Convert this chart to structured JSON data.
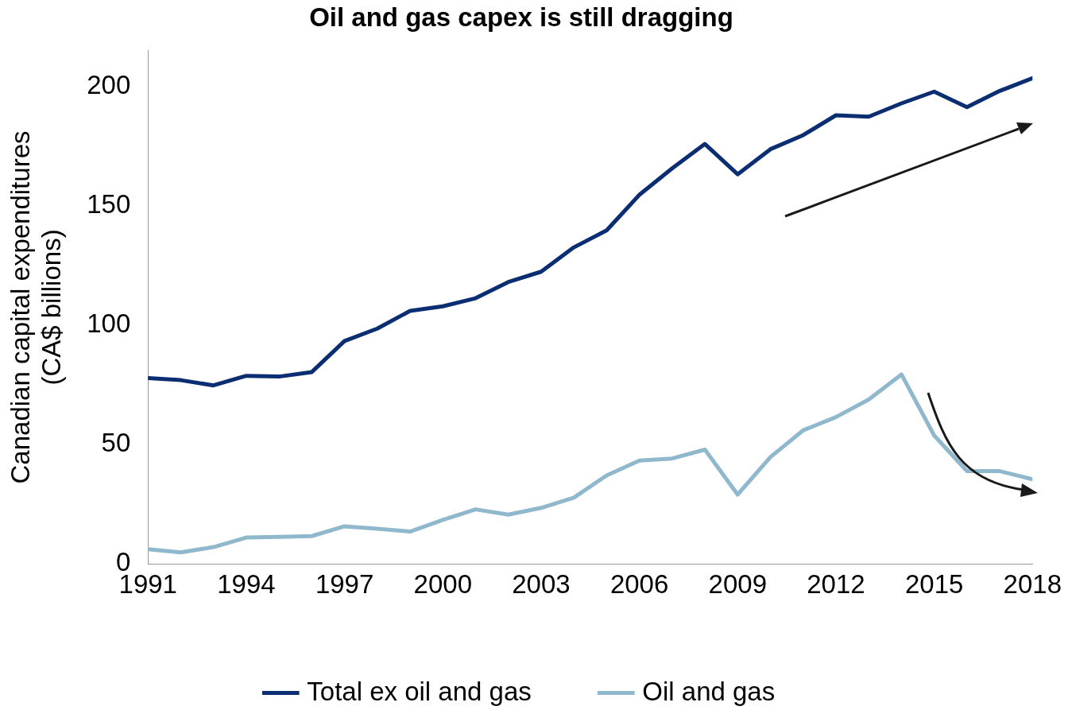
{
  "chart_data": {
    "type": "line",
    "title": "Oil and gas capex is still dragging",
    "ylabel": "Canadian capital expenditures\n(CA$ billions)",
    "x": [
      1991,
      1992,
      1993,
      1994,
      1995,
      1996,
      1997,
      1998,
      1999,
      2000,
      2001,
      2002,
      2003,
      2004,
      2005,
      2006,
      2007,
      2008,
      2009,
      2010,
      2011,
      2012,
      2013,
      2014,
      2015,
      2016,
      2017,
      2018
    ],
    "series": [
      {
        "name": "Total ex oil and gas",
        "color": "#0b2d71",
        "values": [
          77.9,
          77,
          74.8,
          78.8,
          78.5,
          80.4,
          93.4,
          98.6,
          106,
          107.9,
          111.3,
          118.1,
          122.4,
          132.6,
          139.7,
          154.6,
          165.7,
          175.9,
          163.2,
          173.7,
          179.6,
          187.9,
          187.3,
          192.9,
          197.8,
          191.3,
          198.1,
          203.4
        ]
      },
      {
        "name": "Oil and gas",
        "color": "#8fb8cc",
        "values": [
          6.2,
          4.9,
          7.1,
          11.1,
          11.4,
          11.7,
          15.8,
          14.8,
          13.6,
          18.5,
          22.9,
          20.7,
          23.5,
          27.8,
          37.1,
          43.3,
          44.2,
          47.9,
          29.1,
          44.8,
          56,
          61.5,
          68.9,
          79.4,
          53.8,
          38.9,
          38.9,
          35.5
        ]
      }
    ],
    "xlim": [
      1991,
      2018
    ],
    "xticks": [
      1991,
      1994,
      1997,
      2000,
      2003,
      2006,
      2009,
      2012,
      2015,
      2018
    ],
    "ylim": [
      0,
      215
    ],
    "yticks": [
      0,
      50,
      100,
      150,
      200
    ],
    "grid": false,
    "legend": "bottom",
    "marker": "none",
    "line_style": "solid"
  }
}
